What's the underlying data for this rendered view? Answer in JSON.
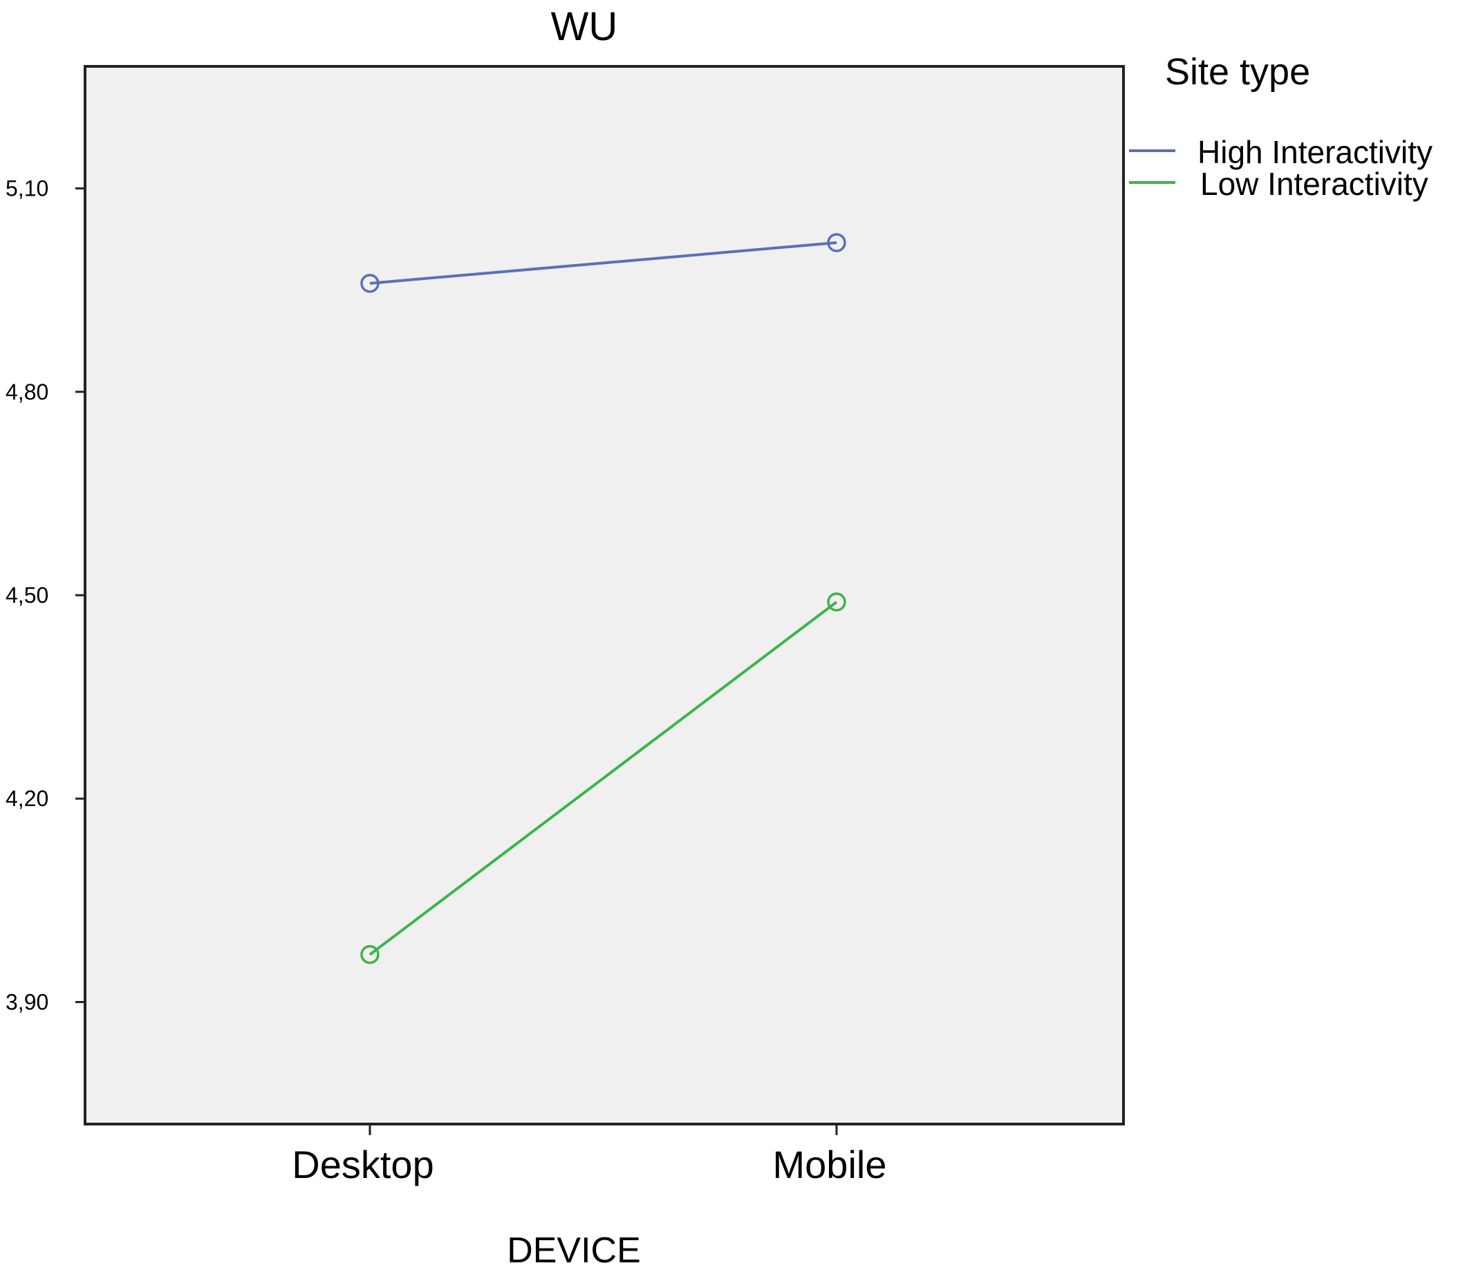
{
  "chart_data": {
    "type": "line",
    "title": "WU",
    "xlabel": "DEVICE",
    "ylabel": "",
    "categories": [
      "Desktop",
      "Mobile"
    ],
    "yticks": [
      {
        "value": 3.9,
        "label": "3,90"
      },
      {
        "value": 4.2,
        "label": "4,20"
      },
      {
        "value": 4.5,
        "label": "4,50"
      },
      {
        "value": 4.8,
        "label": "4,80"
      },
      {
        "value": 5.1,
        "label": "5,10"
      }
    ],
    "ylim": [
      3.72,
      5.28
    ],
    "grid": false,
    "legend": {
      "title": "Site type",
      "placement": "right"
    },
    "series": [
      {
        "name": "High Interactivity",
        "color": "#5b6fb9",
        "values": [
          4.96,
          5.02
        ]
      },
      {
        "name": "Low Interactivity",
        "color": "#3cb44b",
        "values": [
          3.97,
          4.49
        ]
      }
    ],
    "plot_background": "#f0f0f0"
  }
}
